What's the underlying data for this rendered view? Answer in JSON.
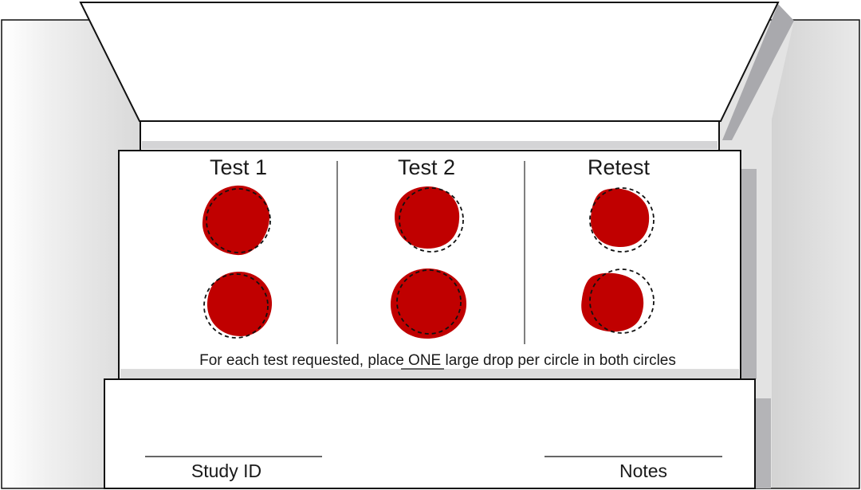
{
  "columns": [
    {
      "title": "Test 1"
    },
    {
      "title": "Test 2"
    },
    {
      "title": "Retest"
    }
  ],
  "instruction": {
    "before": "For each test requested, place ",
    "emphasis": "ONE",
    "after": " large drop per circle in both circles"
  },
  "card": {
    "left_label": "Study ID",
    "right_label": "Notes"
  },
  "colors": {
    "blood": "#c00000",
    "outline": "#111111",
    "panel_gray": "#e6e6e6",
    "shadow_gray": "#b9b9bc"
  }
}
